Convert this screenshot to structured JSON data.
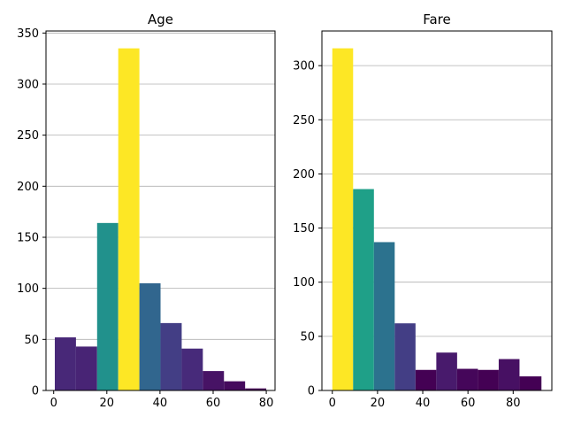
{
  "chart_data": [
    {
      "type": "bar",
      "title": "Age",
      "xlabel": "",
      "ylabel": "",
      "xlim": [
        -2.9,
        83.3
      ],
      "ylim": [
        0,
        352
      ],
      "xticks": [
        0,
        20,
        40,
        60,
        80
      ],
      "yticks": [
        0,
        50,
        100,
        150,
        200,
        250,
        300,
        350
      ],
      "grid": "y",
      "bins": [
        {
          "x0": 0.42,
          "x1": 8.38,
          "value": 52,
          "color": "#482878"
        },
        {
          "x0": 8.38,
          "x1": 16.34,
          "value": 43,
          "color": "#482475"
        },
        {
          "x0": 16.34,
          "x1": 24.29,
          "value": 164,
          "color": "#21918c"
        },
        {
          "x0": 24.29,
          "x1": 32.25,
          "value": 335,
          "color": "#fde725"
        },
        {
          "x0": 32.25,
          "x1": 40.21,
          "value": 105,
          "color": "#31668e"
        },
        {
          "x0": 40.21,
          "x1": 48.17,
          "value": 66,
          "color": "#433e85"
        },
        {
          "x0": 48.17,
          "x1": 56.13,
          "value": 41,
          "color": "#472a7a"
        },
        {
          "x0": 56.13,
          "x1": 64.08,
          "value": 19,
          "color": "#471365"
        },
        {
          "x0": 64.08,
          "x1": 72.04,
          "value": 9,
          "color": "#450a5d"
        },
        {
          "x0": 72.04,
          "x1": 80.0,
          "value": 2,
          "color": "#440154"
        }
      ]
    },
    {
      "type": "bar",
      "title": "Fare",
      "xlabel": "",
      "ylabel": "",
      "xlim": [
        -4.6,
        97.1
      ],
      "ylim": [
        0,
        332
      ],
      "xticks": [
        0,
        20,
        40,
        60,
        80
      ],
      "yticks": [
        0,
        50,
        100,
        150,
        200,
        250,
        300
      ],
      "grid": "y",
      "bins": [
        {
          "x0": 0,
          "x1": 9.2,
          "value": 316,
          "color": "#fde725"
        },
        {
          "x0": 9.2,
          "x1": 18.4,
          "value": 186,
          "color": "#1fa088"
        },
        {
          "x0": 18.4,
          "x1": 27.6,
          "value": 137,
          "color": "#2c728e"
        },
        {
          "x0": 27.6,
          "x1": 36.8,
          "value": 62,
          "color": "#433e85"
        },
        {
          "x0": 36.8,
          "x1": 46.0,
          "value": 19,
          "color": "#440154"
        },
        {
          "x0": 46.0,
          "x1": 55.2,
          "value": 35,
          "color": "#481a6c"
        },
        {
          "x0": 55.2,
          "x1": 64.4,
          "value": 20,
          "color": "#45065a"
        },
        {
          "x0": 64.4,
          "x1": 73.6,
          "value": 19,
          "color": "#440154"
        },
        {
          "x0": 73.6,
          "x1": 82.8,
          "value": 29,
          "color": "#471063"
        },
        {
          "x0": 82.8,
          "x1": 92.5,
          "value": 13,
          "color": "#440154"
        }
      ]
    }
  ]
}
